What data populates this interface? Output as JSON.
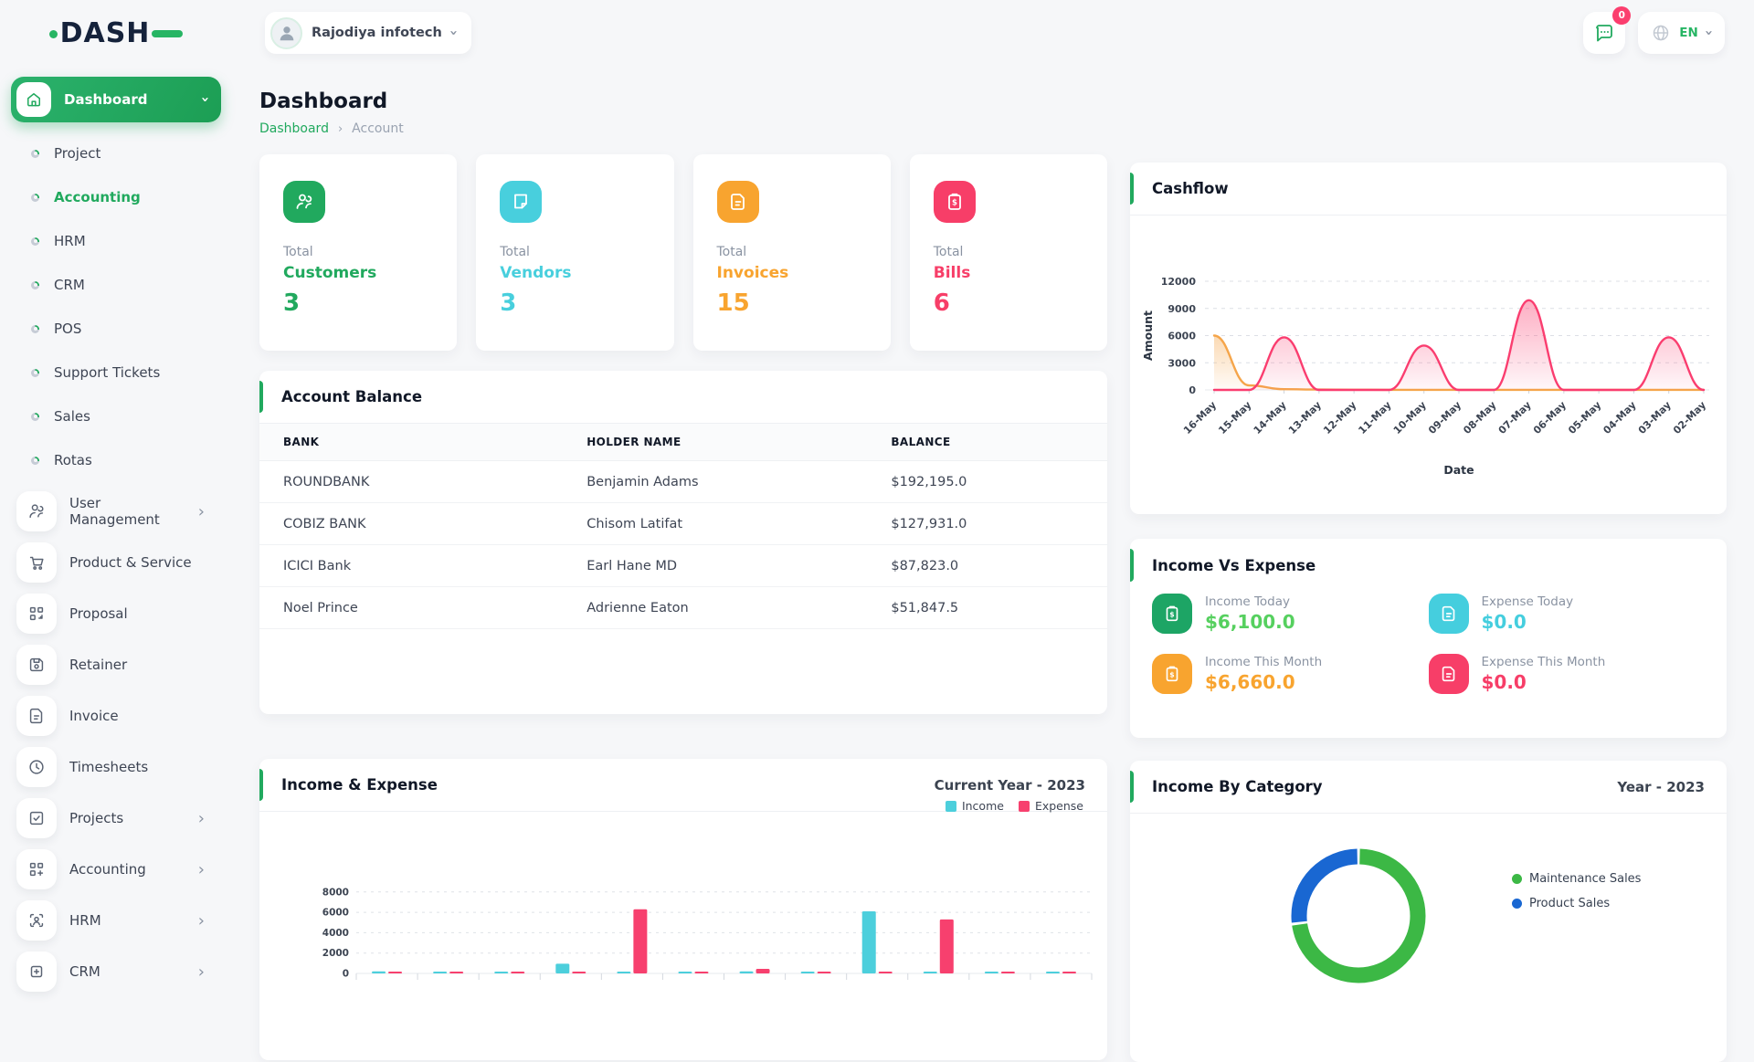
{
  "brand": {
    "logo_text": "DASH"
  },
  "topbar": {
    "company": "Rajodiya infotech",
    "notification_badge": "0",
    "language": "EN"
  },
  "page": {
    "title": "Dashboard",
    "breadcrumb_root": "Dashboard",
    "breadcrumb_current": "Account"
  },
  "sidebar": {
    "dashboard_label": "Dashboard",
    "sub_items": [
      {
        "label": "Project"
      },
      {
        "label": "Accounting"
      },
      {
        "label": "HRM"
      },
      {
        "label": "CRM"
      },
      {
        "label": "POS"
      },
      {
        "label": "Support Tickets"
      },
      {
        "label": "Sales"
      },
      {
        "label": "Rotas"
      }
    ],
    "items": [
      {
        "label": "User Management",
        "icon": "users-icon",
        "chevron": true
      },
      {
        "label": "Product & Service",
        "icon": "cart-icon",
        "chevron": false
      },
      {
        "label": "Proposal",
        "icon": "grid-arrow-icon",
        "chevron": false
      },
      {
        "label": "Retainer",
        "icon": "floppy-icon",
        "chevron": false
      },
      {
        "label": "Invoice",
        "icon": "file-text-icon",
        "chevron": false
      },
      {
        "label": "Timesheets",
        "icon": "clock-icon",
        "chevron": false
      },
      {
        "label": "Projects",
        "icon": "check-square-icon",
        "chevron": true
      },
      {
        "label": "Accounting",
        "icon": "grid-plus-icon",
        "chevron": true
      },
      {
        "label": "HRM",
        "icon": "person-scan-icon",
        "chevron": true
      },
      {
        "label": "CRM",
        "icon": "frame-plus-icon",
        "chevron": true
      }
    ]
  },
  "stat_cards": [
    {
      "prefix": "Total",
      "label": "Customers",
      "value": "3",
      "color": "#21a95e",
      "icon": "users-icon"
    },
    {
      "prefix": "Total",
      "label": "Vendors",
      "value": "3",
      "color": "#48cfdd",
      "icon": "note-icon"
    },
    {
      "prefix": "Total",
      "label": "Invoices",
      "value": "15",
      "color": "#f8a42f",
      "icon": "invoice-icon"
    },
    {
      "prefix": "Total",
      "label": "Bills",
      "value": "6",
      "color": "#f73e68",
      "icon": "bill-icon"
    }
  ],
  "account_balance": {
    "title": "Account Balance",
    "columns": [
      "BANK",
      "HOLDER NAME",
      "BALANCE"
    ],
    "rows": [
      [
        "ROUNDBANK",
        "Benjamin Adams",
        "$192,195.0"
      ],
      [
        "COBIZ BANK",
        "Chisom Latifat",
        "$127,931.0"
      ],
      [
        "ICICI Bank",
        "Earl Hane MD",
        "$87,823.0"
      ],
      [
        "Noel Prince",
        "Adrienne Eaton",
        "$51,847.5"
      ]
    ]
  },
  "income_vs_expense": {
    "title": "Income Vs Expense",
    "items": [
      {
        "label": "Income Today",
        "value": "$6,100.0",
        "icon_color": "#1da565",
        "value_color": "#56d05f",
        "icon": "clipboard-dollar-icon"
      },
      {
        "label": "Expense Today",
        "value": "$0.0",
        "icon_color": "#45cede",
        "value_color": "#45cede",
        "icon": "file-text-icon"
      },
      {
        "label": "Income This Month",
        "value": "$6,660.0",
        "icon_color": "#f8a42f",
        "value_color": "#f8a42f",
        "icon": "clipboard-dollar-icon"
      },
      {
        "label": "Expense This Month",
        "value": "$0.0",
        "icon_color": "#f73e68",
        "value_color": "#f73e68",
        "icon": "file-text-icon"
      }
    ]
  },
  "chart_data": [
    {
      "id": "cashflow",
      "type": "area",
      "title": "Cashflow",
      "xlabel": "Date",
      "ylabel": "Amount",
      "grid": "dashed-horizontal",
      "ylim": [
        0,
        12000
      ],
      "yticks": [
        0,
        3000,
        6000,
        9000,
        12000
      ],
      "x": [
        "16-May",
        "15-May",
        "14-May",
        "13-May",
        "12-May",
        "11-May",
        "10-May",
        "09-May",
        "08-May",
        "07-May",
        "06-May",
        "05-May",
        "04-May",
        "03-May",
        "02-May"
      ],
      "series": [
        {
          "color": "#f5a54a",
          "values": [
            6000,
            500,
            80,
            40,
            20,
            10,
            10,
            10,
            10,
            10,
            10,
            10,
            10,
            10,
            10
          ]
        },
        {
          "color": "#fa3d6f",
          "values": [
            0,
            0,
            5800,
            0,
            0,
            0,
            4900,
            0,
            0,
            9900,
            0,
            0,
            0,
            5800,
            0
          ]
        }
      ]
    },
    {
      "id": "income_expense",
      "type": "bar",
      "title": "Income & Expense",
      "period_label": "Current Year - 2023",
      "legend_position": "top-right",
      "ylim": [
        0,
        8000
      ],
      "yticks": [
        0,
        2000,
        4000,
        6000,
        8000
      ],
      "x_tick_labels_visible": false,
      "categories": [
        "",
        "",
        "",
        "",
        "",
        "",
        "",
        "",
        "",
        "",
        "",
        ""
      ],
      "series": [
        {
          "name": "Income",
          "color": "#4ccfdc",
          "values": [
            200,
            100,
            100,
            950,
            100,
            100,
            200,
            100,
            6100,
            100,
            100,
            100
          ]
        },
        {
          "name": "Expense",
          "color": "#f7406e",
          "values": [
            150,
            100,
            100,
            100,
            6300,
            100,
            450,
            100,
            100,
            5300,
            100,
            100
          ]
        }
      ]
    },
    {
      "id": "income_by_category",
      "type": "donut",
      "title": "Income By Category",
      "period_label": "Year - 2023",
      "legend_position": "right",
      "segments": [
        {
          "label": "Maintenance Sales",
          "color": "#3cb845",
          "value_pct": 73
        },
        {
          "label": "Product Sales",
          "color": "#1967d2",
          "value_pct": 27
        }
      ]
    }
  ]
}
